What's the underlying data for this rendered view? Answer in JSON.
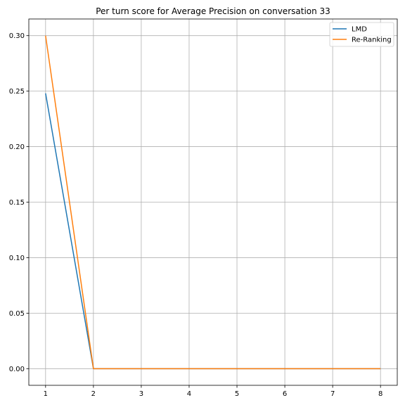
{
  "chart_data": {
    "type": "line",
    "title": "Per turn score for Average Precision on conversation 33",
    "xlabel": "",
    "ylabel": "",
    "x": [
      1,
      2,
      3,
      4,
      5,
      6,
      7,
      8
    ],
    "xlim": [
      0.65,
      8.35
    ],
    "ylim": [
      -0.015,
      0.315
    ],
    "xticks": [
      1,
      2,
      3,
      4,
      5,
      6,
      7,
      8
    ],
    "xtick_labels": [
      "1",
      "2",
      "3",
      "4",
      "5",
      "6",
      "7",
      "8"
    ],
    "yticks": [
      0.0,
      0.05,
      0.1,
      0.15,
      0.2,
      0.25,
      0.3
    ],
    "ytick_labels": [
      "0.00",
      "0.05",
      "0.10",
      "0.15",
      "0.20",
      "0.25",
      "0.30"
    ],
    "grid": true,
    "legend_position": "top-right",
    "series": [
      {
        "name": "LMD",
        "color": "#1f77b4",
        "values": [
          0.248,
          0,
          0,
          0,
          0,
          0,
          0,
          0
        ]
      },
      {
        "name": "Re-Ranking",
        "color": "#ff7f0e",
        "values": [
          0.3,
          0,
          0,
          0,
          0,
          0,
          0,
          0
        ]
      }
    ]
  }
}
